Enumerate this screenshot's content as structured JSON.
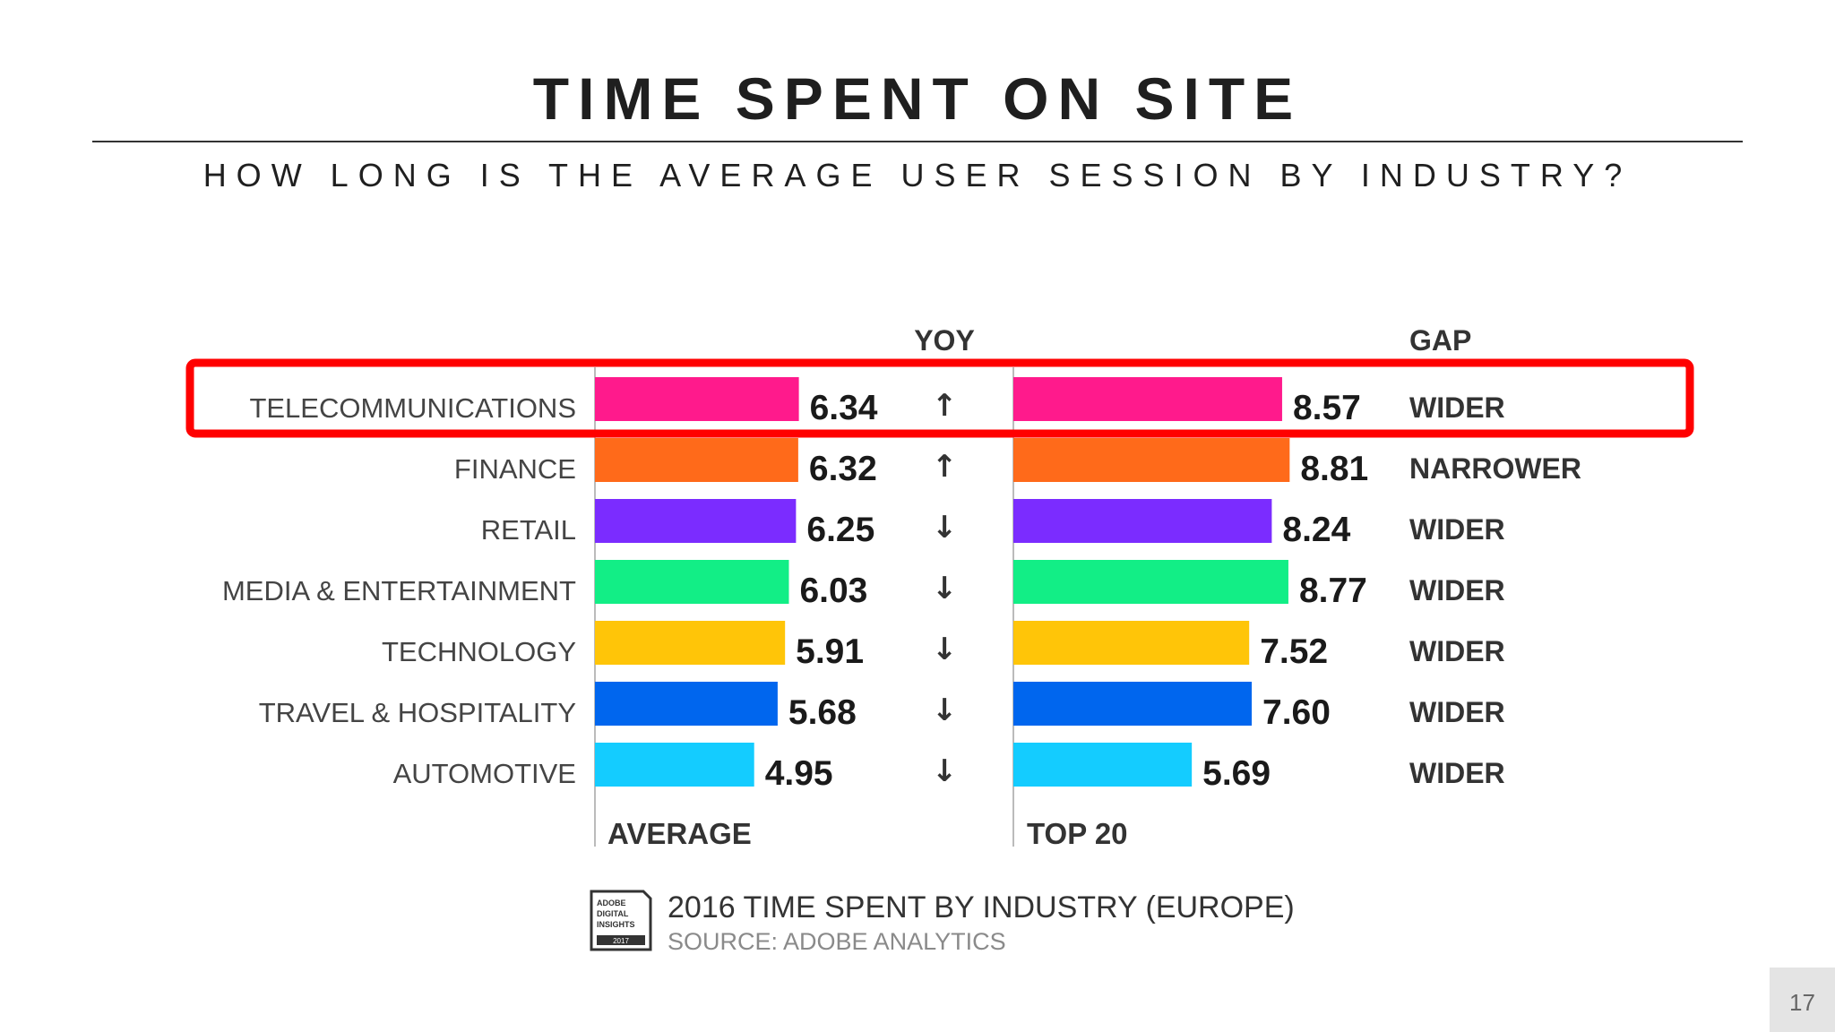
{
  "slide": {
    "title": "TIME SPENT ON SITE",
    "subtitle": "HOW LONG IS THE AVERAGE USER SESSION BY INDUSTRY?",
    "page_number": "17"
  },
  "chart_data": {
    "type": "bar",
    "title": "2016 TIME SPENT BY INDUSTRY (EUROPE)",
    "source": "SOURCE: ADOBE ANALYTICS",
    "logo_text": "ADOBE DIGITAL INSIGHTS 2017",
    "categories": [
      "TELECOMMUNICATIONS",
      "FINANCE",
      "RETAIL",
      "MEDIA & ENTERTAINMENT",
      "TECHNOLOGY",
      "TRAVEL & HOSPITALITY",
      "AUTOMOTIVE"
    ],
    "colors": [
      "#ff1a8c",
      "#ff6a1a",
      "#7b2cff",
      "#12ee86",
      "#ffc508",
      "#0066ee",
      "#14ccff"
    ],
    "series": [
      {
        "name": "AVERAGE",
        "values": [
          6.34,
          6.32,
          6.25,
          6.03,
          5.91,
          5.68,
          4.95
        ],
        "labels": [
          "6.34",
          "6.32",
          "6.25",
          "6.03",
          "5.91",
          "5.68",
          "4.95"
        ]
      },
      {
        "name": "TOP 20",
        "values": [
          8.57,
          8.81,
          8.24,
          8.77,
          7.52,
          7.6,
          5.69
        ],
        "labels": [
          "8.57",
          "8.81",
          "8.24",
          "8.77",
          "7.52",
          "7.60",
          "5.69"
        ]
      }
    ],
    "yoy_header": "YOY",
    "yoy": [
      "up",
      "up",
      "down",
      "down",
      "down",
      "down",
      "down"
    ],
    "gap_header": "GAP",
    "gap": [
      "WIDER",
      "NARROWER",
      "WIDER",
      "WIDER",
      "WIDER",
      "WIDER",
      "WIDER"
    ],
    "highlighted_category": "TELECOMMUNICATIONS",
    "highlight_color": "#ff0000",
    "arrow_glyphs": {
      "up": "↑",
      "down": "↓"
    }
  }
}
